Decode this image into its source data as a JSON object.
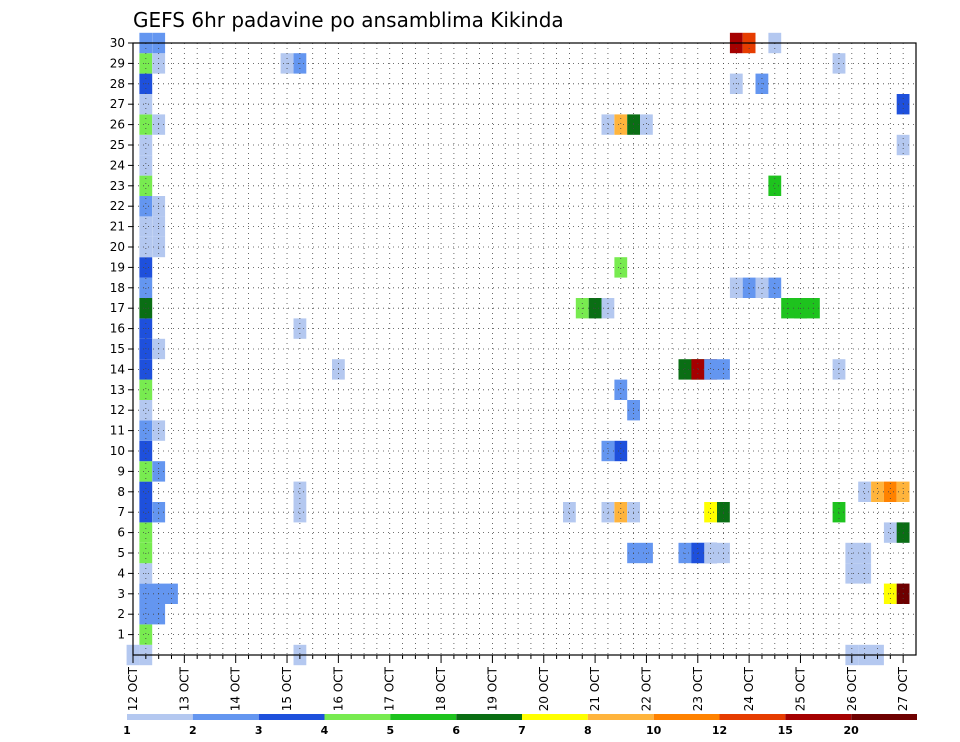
{
  "chart_data": {
    "type": "heatmap",
    "title": "GEFS 6hr padavine po ansamblima Kikinda",
    "xlabel": "",
    "ylabel": "",
    "x_unit": "6-hour steps from 12 OCT 00Z",
    "x_ticks": [
      "12 OCT",
      "13 OCT",
      "14 OCT",
      "15 OCT",
      "16 OCT",
      "17 OCT",
      "18 OCT",
      "19 OCT",
      "20 OCT",
      "21 OCT",
      "22 OCT",
      "23 OCT",
      "24 OCT",
      "25 OCT",
      "26 OCT",
      "27 OCT"
    ],
    "y_ticks": [
      "1",
      "2",
      "3",
      "4",
      "5",
      "6",
      "7",
      "8",
      "9",
      "10",
      "11",
      "12",
      "13",
      "14",
      "15",
      "16",
      "17",
      "18",
      "19",
      "20",
      "21",
      "22",
      "23",
      "24",
      "25",
      "26",
      "27",
      "28",
      "29",
      "30"
    ],
    "ylim": [
      0,
      30
    ],
    "grid": true,
    "colorbar": {
      "labels": [
        "1",
        "2",
        "3",
        "4",
        "5",
        "6",
        "7",
        "8",
        "10",
        "12",
        "15",
        "20"
      ],
      "colors": [
        "#b4c8f0",
        "#6496f0",
        "#1e50dc",
        "#78eb50",
        "#1ec31e",
        "#0a6e14",
        "#ffff00",
        "#ffb43c",
        "#ff8200",
        "#e63c00",
        "#a50000",
        "#6e0000"
      ]
    },
    "cells": [
      [
        0,
        0,
        1,
        1
      ],
      [
        1,
        0,
        1,
        1
      ],
      [
        13,
        0,
        1,
        1
      ],
      [
        56,
        0,
        1,
        1
      ],
      [
        57,
        0,
        1,
        2
      ],
      [
        1,
        1,
        4,
        1
      ],
      [
        1,
        2,
        2,
        2
      ],
      [
        1,
        3,
        2,
        3
      ],
      [
        59,
        3,
        7,
        1
      ],
      [
        60,
        3,
        12,
        1
      ],
      [
        1,
        4,
        1,
        1
      ],
      [
        56,
        4,
        1,
        2
      ],
      [
        1,
        5,
        4,
        1
      ],
      [
        39,
        5,
        2,
        2
      ],
      [
        43,
        5,
        2,
        2
      ],
      [
        44,
        5,
        3,
        2
      ],
      [
        45,
        5,
        1,
        2
      ],
      [
        56,
        5,
        1,
        2
      ],
      [
        1,
        6,
        4,
        1
      ],
      [
        59,
        6,
        1,
        2
      ],
      [
        60,
        6,
        6,
        1
      ],
      [
        1,
        7,
        3,
        1
      ],
      [
        2,
        7,
        2,
        1
      ],
      [
        13,
        7,
        1,
        1
      ],
      [
        34,
        7,
        1,
        1
      ],
      [
        37,
        7,
        1,
        1
      ],
      [
        38,
        7,
        8,
        1
      ],
      [
        39,
        7,
        1,
        1
      ],
      [
        45,
        7,
        7,
        1
      ],
      [
        46,
        7,
        6,
        1
      ],
      [
        55,
        7,
        5,
        1
      ],
      [
        1,
        8,
        3,
        1
      ],
      [
        13,
        8,
        1,
        1
      ],
      [
        57,
        8,
        1,
        1
      ],
      [
        58,
        8,
        8,
        1
      ],
      [
        59,
        8,
        9,
        1
      ],
      [
        60,
        8,
        8,
        1
      ],
      [
        1,
        9,
        4,
        1
      ],
      [
        2,
        9,
        2,
        1
      ],
      [
        1,
        10,
        3,
        1
      ],
      [
        37,
        10,
        2,
        1
      ],
      [
        38,
        10,
        3,
        1
      ],
      [
        1,
        11,
        2,
        1
      ],
      [
        2,
        11,
        1,
        1
      ],
      [
        1,
        12,
        1,
        1
      ],
      [
        39,
        12,
        2,
        1
      ],
      [
        1,
        13,
        4,
        1
      ],
      [
        38,
        13,
        2,
        1
      ],
      [
        1,
        14,
        3,
        1
      ],
      [
        16,
        14,
        1,
        1
      ],
      [
        43,
        14,
        6,
        2
      ],
      [
        44,
        14,
        11,
        2
      ],
      [
        45,
        14,
        2,
        2
      ],
      [
        55,
        14,
        1,
        1
      ],
      [
        1,
        15,
        3,
        1
      ],
      [
        2,
        15,
        1,
        1
      ],
      [
        1,
        16,
        3,
        1
      ],
      [
        13,
        16,
        1,
        1
      ],
      [
        1,
        17,
        6,
        1
      ],
      [
        35,
        17,
        4,
        1
      ],
      [
        36,
        17,
        6,
        1
      ],
      [
        37,
        17,
        1,
        1
      ],
      [
        51,
        17,
        5,
        2
      ],
      [
        52,
        17,
        5,
        2
      ],
      [
        1,
        18,
        2,
        1
      ],
      [
        47,
        18,
        1,
        1
      ],
      [
        48,
        18,
        2,
        1
      ],
      [
        49,
        18,
        1,
        1
      ],
      [
        50,
        18,
        2,
        1
      ],
      [
        1,
        19,
        3,
        1
      ],
      [
        38,
        19,
        4,
        1
      ],
      [
        1,
        20,
        1,
        1
      ],
      [
        2,
        20,
        1,
        1
      ],
      [
        1,
        21,
        1,
        1
      ],
      [
        2,
        21,
        1,
        1
      ],
      [
        1,
        22,
        2,
        1
      ],
      [
        2,
        22,
        1,
        1
      ],
      [
        1,
        23,
        4,
        1
      ],
      [
        50,
        23,
        5,
        1
      ],
      [
        1,
        24,
        1,
        1
      ],
      [
        1,
        25,
        1,
        1
      ],
      [
        60,
        25,
        1,
        1
      ],
      [
        1,
        26,
        4,
        1
      ],
      [
        2,
        26,
        1,
        1
      ],
      [
        37,
        26,
        1,
        1
      ],
      [
        38,
        26,
        8,
        1
      ],
      [
        39,
        26,
        6,
        1
      ],
      [
        40,
        26,
        1,
        1
      ],
      [
        1,
        27,
        1,
        1
      ],
      [
        60,
        27,
        3,
        1
      ],
      [
        1,
        28,
        3,
        1
      ],
      [
        47,
        28,
        1,
        1
      ],
      [
        49,
        28,
        2,
        1
      ],
      [
        1,
        29,
        4,
        1
      ],
      [
        2,
        29,
        1,
        1
      ],
      [
        12,
        29,
        1,
        1
      ],
      [
        13,
        29,
        2,
        1
      ],
      [
        55,
        29,
        1,
        1
      ],
      [
        1,
        30,
        2,
        1
      ],
      [
        2,
        30,
        2,
        1
      ],
      [
        47,
        30,
        11,
        1
      ],
      [
        48,
        30,
        10,
        1
      ],
      [
        50,
        30,
        1,
        1
      ]
    ]
  }
}
